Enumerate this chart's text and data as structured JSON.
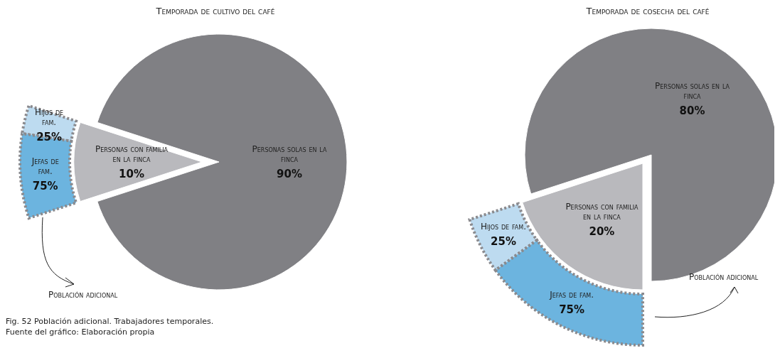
{
  "chart_data": [
    {
      "type": "pie",
      "title": "Temporada de cultivo del café",
      "categories": [
        "Personas solas en la finca",
        "Personas con familia en la finca"
      ],
      "values": [
        90,
        10
      ],
      "colors": [
        "#808084",
        "#b9b9bd"
      ],
      "value_labels": [
        "90%",
        "10%"
      ],
      "annotations": [
        "Fig. 52 Población adicional. Trabajadores temporales.",
        "Fuente del gráfico: Elaboración propia"
      ]
    },
    {
      "type": "donut",
      "categories": [
        "Hijos de fam.",
        "Jefas de fam."
      ],
      "values": [
        25,
        75
      ],
      "colors": [
        "#bddbf0",
        "#6cb4df"
      ],
      "value_labels": [
        "25%",
        "75%"
      ],
      "annotations": [
        "Población adicional"
      ]
    },
    {
      "type": "pie",
      "title": "Temporada de cosecha del café",
      "categories": [
        "Personas solas en la finca",
        "Personas con familia en la finca"
      ],
      "values": [
        80,
        20
      ],
      "colors": [
        "#808084",
        "#b9b9bd"
      ],
      "value_labels": [
        "80%",
        "20%"
      ]
    },
    {
      "type": "donut",
      "categories": [
        "Hijos de fam.",
        "Jefas de fam."
      ],
      "values": [
        25,
        75
      ],
      "colors": [
        "#bddbf0",
        "#6cb4df"
      ],
      "value_labels": [
        "25%",
        "75%"
      ],
      "annotations": [
        "Población adicional"
      ]
    }
  ]
}
